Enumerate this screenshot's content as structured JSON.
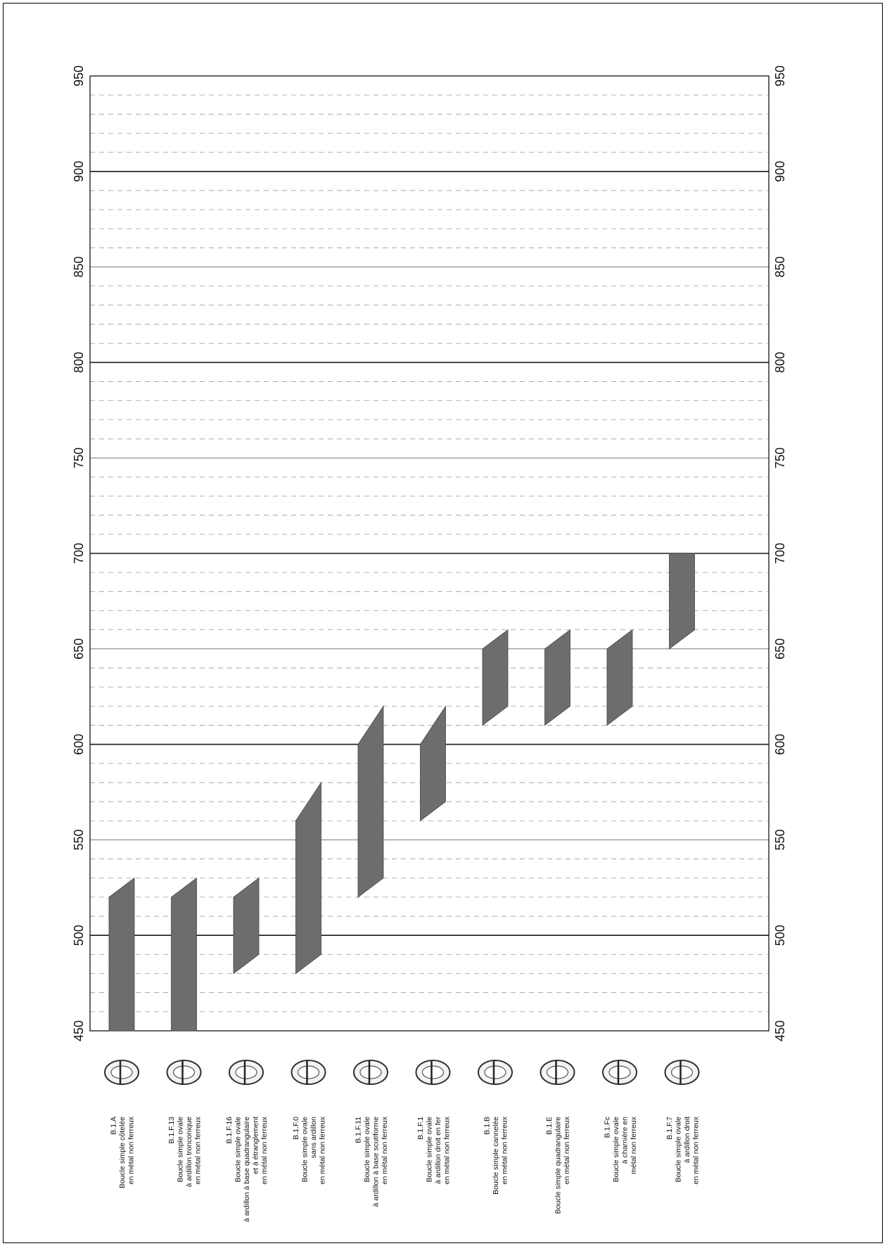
{
  "chart_data": {
    "type": "bar",
    "orientation": "rotated-90",
    "ylim": [
      450,
      950
    ],
    "major_ticks": [
      450,
      500,
      550,
      600,
      650,
      700,
      750,
      800,
      850,
      900,
      950
    ],
    "grid": "major solid, minor dashed every 10",
    "bar_color": "#6d6d6d",
    "series": [
      {
        "code": "B.1.A",
        "lines": [
          "B.1.A",
          "Boucle simple côtelée",
          "en métal non ferreux"
        ],
        "range": [
          450,
          530
        ],
        "shift": [
          0,
          10
        ]
      },
      {
        "code": "B.1.F.13",
        "lines": [
          "B.1.F.13",
          "Boucle simple ovale",
          "à ardillon tronconique",
          "en métal non ferreux"
        ],
        "range": [
          450,
          530
        ],
        "shift": [
          0,
          10
        ]
      },
      {
        "code": "B.1.F.16",
        "lines": [
          "B.1.F.16",
          "Boucle simple ovale",
          "à ardillon à base quadrangulaire",
          "et à étranglement",
          "en métal non ferreux"
        ],
        "range": [
          480,
          530
        ],
        "shift": [
          10,
          10
        ]
      },
      {
        "code": "B.1.F.0",
        "lines": [
          "B.1.F.0",
          "Boucle simple ovale",
          "sans ardillon",
          "en métal non ferreux"
        ],
        "range": [
          480,
          580
        ],
        "shift": [
          10,
          20
        ]
      },
      {
        "code": "B.1.F.11",
        "lines": [
          "B.1.F.11",
          "Boucle simple ovale",
          "à ardillon à base scutiforme",
          "en métal non ferreux"
        ],
        "range": [
          520,
          620
        ],
        "shift": [
          10,
          20
        ]
      },
      {
        "code": "B.1.F.1",
        "lines": [
          "B.1.F.1",
          "Boucle simple ovale",
          "à ardillon droit en fer",
          "en métal non ferreux"
        ],
        "range": [
          560,
          620
        ],
        "shift": [
          10,
          20
        ]
      },
      {
        "code": "B.1.B",
        "lines": [
          "B.1.B",
          "Boucle simple cannelée",
          "en métal non ferreux"
        ],
        "range": [
          610,
          660
        ],
        "shift": [
          10,
          10
        ]
      },
      {
        "code": "B.1.E",
        "lines": [
          "B.1.E",
          "Boucle simple quadrangulaire",
          "en métal non ferreux"
        ],
        "range": [
          610,
          660
        ],
        "shift": [
          10,
          10
        ]
      },
      {
        "code": "B.1.Fc",
        "lines": [
          "B.1.Fc",
          "Boucle simple ovale",
          "à charnière en",
          "métal non ferreux"
        ],
        "range": [
          610,
          660
        ],
        "shift": [
          10,
          10
        ]
      },
      {
        "code": "B.1.F.7",
        "lines": [
          "B.1.F.7",
          "Boucle simple ovale",
          "à ardillon droit",
          "en métal non ferreux"
        ],
        "range": [
          650,
          700
        ],
        "shift": [
          10,
          0
        ]
      }
    ]
  }
}
